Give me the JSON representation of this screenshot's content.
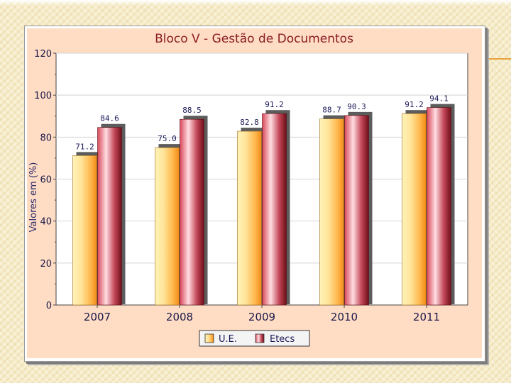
{
  "slide": {
    "background_color": "#f6ecc9",
    "accent_line_color": "#e8a23c"
  },
  "chart_data": {
    "type": "bar",
    "title": "Bloco V - Gestão de Documentos",
    "xlabel": "",
    "ylabel": "Valores em (%)",
    "ylim": [
      0,
      120
    ],
    "yticks": [
      0,
      20,
      40,
      60,
      80,
      100,
      120
    ],
    "categories": [
      "2007",
      "2008",
      "2009",
      "2010",
      "2011"
    ],
    "series": [
      {
        "name": "U.E.",
        "values": [
          71.2,
          75.0,
          82.8,
          88.7,
          91.2
        ],
        "labels": [
          "71.2",
          "75.0",
          "82.8",
          "88.7",
          "91.2"
        ],
        "color": "#ffd27a"
      },
      {
        "name": "Etecs",
        "values": [
          84.6,
          88.5,
          91.2,
          90.3,
          94.1
        ],
        "labels": [
          "84.6",
          "88.5",
          "91.2",
          "90.3",
          "94.1"
        ],
        "color": "#b8323c"
      }
    ],
    "grid": true,
    "legend": "bottom-center",
    "panel_color": "#ffdcc4",
    "plot_color": "#ffffff",
    "title_color": "#8b1e24"
  }
}
